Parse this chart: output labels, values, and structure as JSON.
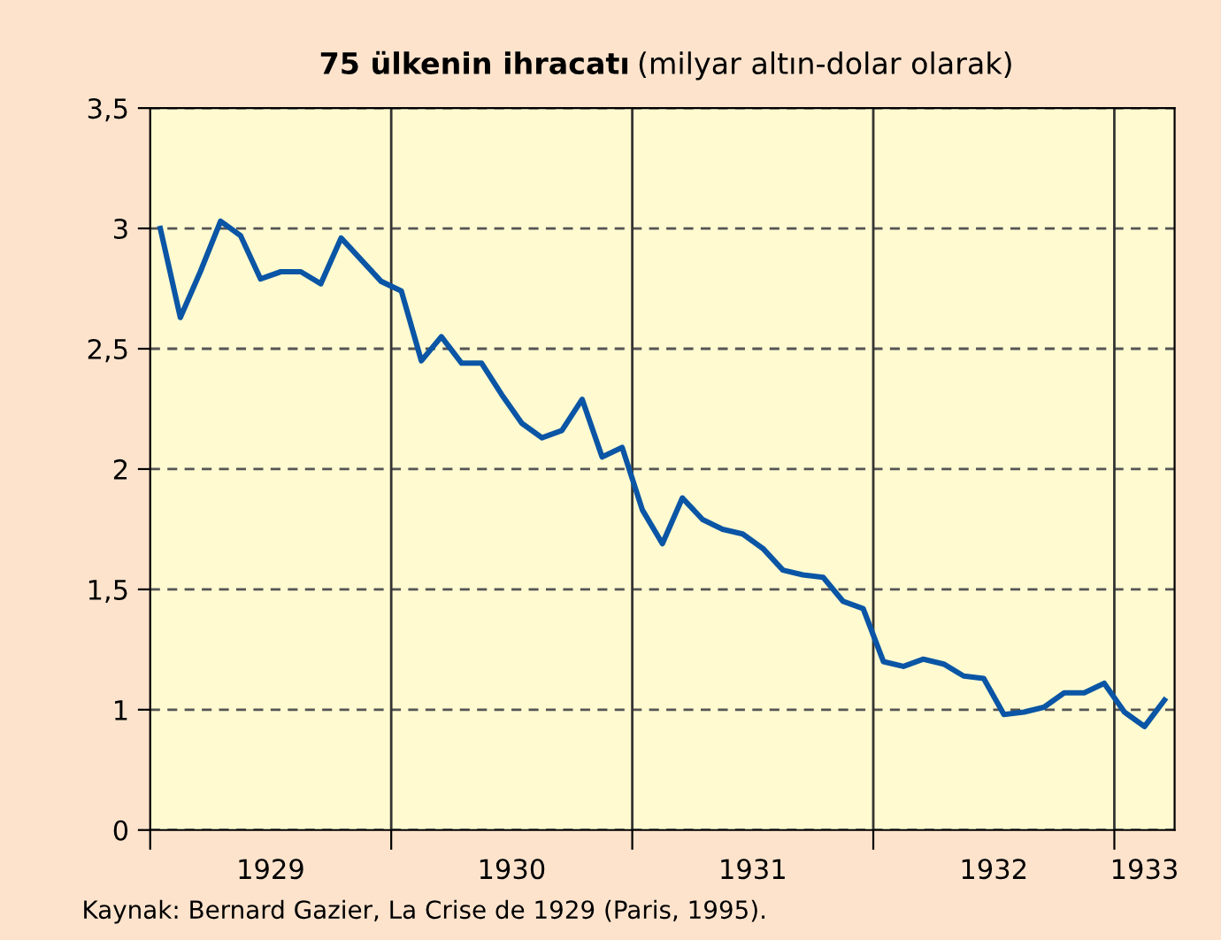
{
  "chart_data": {
    "type": "line",
    "title": "75 ülkenin ihracatı",
    "subtitle": "(milyar altın-dolar olarak)",
    "x": [
      1929.042,
      1929.125,
      1929.208,
      1929.292,
      1929.375,
      1929.458,
      1929.542,
      1929.625,
      1929.708,
      1929.792,
      1929.875,
      1929.958,
      1930.042,
      1930.125,
      1930.208,
      1930.292,
      1930.375,
      1930.458,
      1930.542,
      1930.625,
      1930.708,
      1930.792,
      1930.875,
      1930.958,
      1931.042,
      1931.125,
      1931.208,
      1931.292,
      1931.375,
      1931.458,
      1931.542,
      1931.625,
      1931.708,
      1931.792,
      1931.875,
      1931.958,
      1932.042,
      1932.125,
      1932.208,
      1932.292,
      1932.375,
      1932.458,
      1932.542,
      1932.625,
      1932.708,
      1932.792,
      1932.875,
      1932.958,
      1933.042,
      1933.125,
      1933.208
    ],
    "series": [
      {
        "color": "#0a55a5",
        "values": [
          3.0,
          2.63,
          2.82,
          3.03,
          2.97,
          2.79,
          2.82,
          2.82,
          2.77,
          2.96,
          2.87,
          2.78,
          2.74,
          2.45,
          2.55,
          2.44,
          2.44,
          2.31,
          2.19,
          2.13,
          2.16,
          2.29,
          2.05,
          2.09,
          1.83,
          1.69,
          1.88,
          1.79,
          1.75,
          1.73,
          1.67,
          1.58,
          1.56,
          1.55,
          1.45,
          1.42,
          1.2,
          1.18,
          1.21,
          1.19,
          1.14,
          1.13,
          0.98,
          0.99,
          1.01,
          1.07,
          1.07,
          1.11,
          0.99,
          0.93,
          1.04
        ]
      }
    ],
    "xlim": [
      1929,
      1933.25
    ],
    "xticks": [
      {
        "value": 1929,
        "label": null
      },
      {
        "value": 1929.5,
        "label": "1929"
      },
      {
        "value": 1930,
        "label": null
      },
      {
        "value": 1930.5,
        "label": "1930"
      },
      {
        "value": 1931,
        "label": null
      },
      {
        "value": 1931.5,
        "label": "1931"
      },
      {
        "value": 1932,
        "label": null
      },
      {
        "value": 1932.5,
        "label": "1932"
      },
      {
        "value": 1933,
        "label": null
      },
      {
        "value": 1933.125,
        "label": "1933"
      }
    ],
    "ylim": [
      0.5,
      3.5
    ],
    "yticks": [
      {
        "value": 0.5,
        "label": "0"
      },
      {
        "value": 1,
        "label": "1"
      },
      {
        "value": 1.5,
        "label": "1,5"
      },
      {
        "value": 2,
        "label": "2"
      },
      {
        "value": 2.5,
        "label": "2,5"
      },
      {
        "value": 3,
        "label": "3"
      },
      {
        "value": 3.5,
        "label": "3,5"
      }
    ],
    "grid": "y",
    "line_style": "solid",
    "marker": "none",
    "ref_lines": [
      {
        "axis": "x",
        "value": 1930,
        "color": "#333333"
      },
      {
        "axis": "x",
        "value": 1931,
        "color": "#333333"
      },
      {
        "axis": "x",
        "value": 1932,
        "color": "#333333"
      },
      {
        "axis": "x",
        "value": 1933,
        "color": "#333333"
      }
    ],
    "annotations": [
      "Kaynak: Bernard Gazier, La Crise de 1929 (Paris, 1995)."
    ]
  }
}
